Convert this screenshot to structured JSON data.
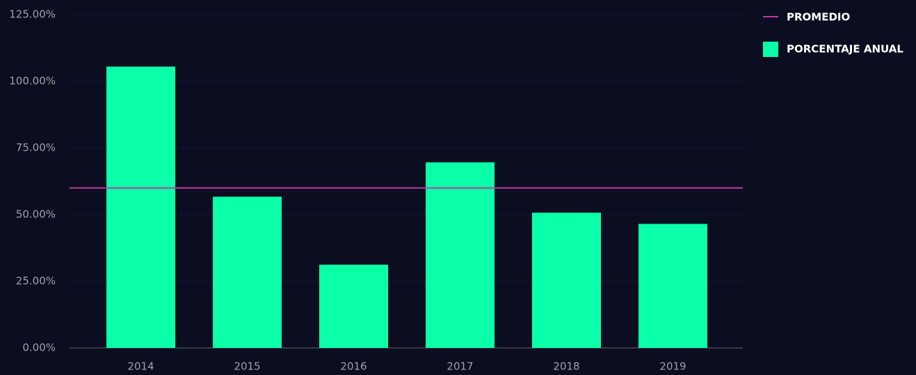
{
  "chart_data": {
    "type": "bar",
    "categories": [
      "2014",
      "2015",
      "2016",
      "2017",
      "2018",
      "2019"
    ],
    "series": [
      {
        "name": "PORCENTAJE ANUAL",
        "color": "#0affa8",
        "values": [
          105.5,
          56.7,
          31.2,
          69.6,
          50.7,
          46.5
        ]
      }
    ],
    "reference_line": {
      "name": "PROMEDIO",
      "color": "#c4399e",
      "value": 60
    },
    "ylim": [
      0,
      125
    ],
    "yticks": [
      {
        "value": 0,
        "label": "0.00%"
      },
      {
        "value": 25,
        "label": "25.00%"
      },
      {
        "value": 50,
        "label": "50.00%"
      },
      {
        "value": 75,
        "label": "75.00%"
      },
      {
        "value": 100,
        "label": "100.00%"
      },
      {
        "value": 125,
        "label": "125.00%"
      }
    ],
    "grid": true,
    "legend": "top-right"
  }
}
